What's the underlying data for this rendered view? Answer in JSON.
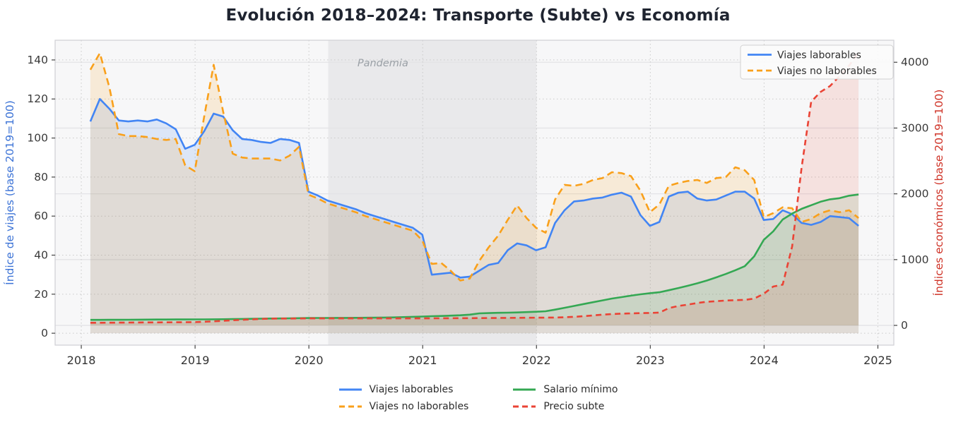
{
  "title": "Evolución 2018–2024: Transporte (Subte) vs Economía",
  "chart_data": {
    "type": "line",
    "title": "Evolución 2018–2024: Transporte (Subte) vs Economía",
    "x_months": [
      "2018-01",
      "2018-02",
      "2018-03",
      "2018-04",
      "2018-05",
      "2018-06",
      "2018-07",
      "2018-08",
      "2018-09",
      "2018-10",
      "2018-11",
      "2018-12",
      "2019-01",
      "2019-02",
      "2019-03",
      "2019-04",
      "2019-05",
      "2019-06",
      "2019-07",
      "2019-08",
      "2019-09",
      "2019-10",
      "2019-11",
      "2019-12",
      "2020-01",
      "2020-02",
      "2020-03",
      "2020-04",
      "2020-05",
      "2020-06",
      "2020-07",
      "2020-08",
      "2020-09",
      "2020-10",
      "2020-11",
      "2020-12",
      "2021-01",
      "2021-02",
      "2021-03",
      "2021-04",
      "2021-05",
      "2021-06",
      "2021-07",
      "2021-08",
      "2021-09",
      "2021-10",
      "2021-11",
      "2021-12",
      "2022-01",
      "2022-02",
      "2022-03",
      "2022-04",
      "2022-05",
      "2022-06",
      "2022-07",
      "2022-08",
      "2022-09",
      "2022-10",
      "2022-11",
      "2022-12",
      "2023-01",
      "2023-02",
      "2023-03",
      "2023-04",
      "2023-05",
      "2023-06",
      "2023-07",
      "2023-08",
      "2023-09",
      "2023-10",
      "2023-11",
      "2023-12",
      "2024-01",
      "2024-02",
      "2024-03",
      "2024-04",
      "2024-05",
      "2024-06",
      "2024-07",
      "2024-08",
      "2024-09",
      "2024-10"
    ],
    "t_start": 2018.08,
    "x_axis": {
      "range": [
        2017.77,
        2025.14
      ],
      "ticks": [
        2018,
        2019,
        2020,
        2021,
        2022,
        2023,
        2024,
        2025
      ]
    },
    "y_left": {
      "label": "Índice de viajes (base 2019=100)",
      "range": [
        -6.1,
        150.1
      ],
      "ticks": [
        0,
        20,
        40,
        60,
        80,
        100,
        120,
        140
      ],
      "color": "#3c73d6"
    },
    "y_right": {
      "label": "Índices económicos (base 2019=100)",
      "range": [
        -300,
        4335
      ],
      "ticks": [
        0,
        1000,
        2000,
        3000,
        4000
      ],
      "color": "#cf3327"
    },
    "grid": true,
    "legend_box": {
      "position": "top-right",
      "items": [
        "Viajes laborables",
        "Viajes no laborables"
      ]
    },
    "legend_bottom": {
      "columns": [
        [
          "Viajes laborables",
          "Viajes no laborables"
        ],
        [
          "Salario mínimo",
          "Precio subte"
        ]
      ]
    },
    "annotation_band": {
      "label": "Pandemia",
      "from": 2020.17,
      "to": 2022.0,
      "color": "#dfdfe3",
      "label_color": "#9aa0a6",
      "label_x": 2020.65,
      "label_y": 136.7
    },
    "series": [
      {
        "name": "Viajes laborables",
        "axis": "left",
        "color": "#4285f4",
        "dash": "solid",
        "fill_opacity": 0.15,
        "values": [
          108.5,
          120,
          115,
          109,
          108.5,
          109,
          108.5,
          109.5,
          107.5,
          104.5,
          94.5,
          96.5,
          103.5,
          112.5,
          111,
          104,
          99.5,
          99,
          98,
          97.5,
          99.5,
          99,
          97.5,
          72.5,
          70.5,
          68,
          66.5,
          65,
          63.5,
          61.5,
          60,
          58.5,
          57,
          55.5,
          54,
          50.5,
          30,
          30.5,
          31,
          28.5,
          29,
          32,
          35,
          36,
          42.5,
          46,
          45,
          42.5,
          44,
          56.5,
          63,
          67.5,
          68,
          69,
          69.5,
          71,
          72,
          70,
          60.5,
          55,
          57,
          70,
          72,
          72.5,
          69,
          68,
          68.5,
          70.5,
          72.5,
          72.5,
          69,
          58,
          58.5,
          63,
          61,
          56.5,
          55.5,
          57,
          60,
          59.5,
          59,
          55
        ]
      },
      {
        "name": "Viajes no laborables",
        "axis": "left",
        "color": "#f9a01b",
        "dash": "dashed",
        "fill_opacity": 0.15,
        "values": [
          135,
          143.5,
          126,
          102,
          101,
          101,
          100.5,
          99.5,
          99,
          99.5,
          86,
          83,
          111,
          137.5,
          113.5,
          92,
          90,
          89.5,
          89.5,
          89.5,
          88.5,
          91,
          95.5,
          71,
          69,
          66.5,
          65,
          63.5,
          62,
          60,
          58.5,
          57,
          55.5,
          54,
          52.5,
          47.5,
          35.5,
          36,
          32,
          27,
          28,
          37,
          44,
          50,
          58,
          65.5,
          59,
          54,
          51.5,
          68.5,
          76,
          75.5,
          76.5,
          78.5,
          79.5,
          82.5,
          82,
          80.5,
          73,
          62,
          66,
          75.5,
          77,
          78,
          78.5,
          77,
          79.5,
          80,
          85,
          83.5,
          78.5,
          59.5,
          61.5,
          64.5,
          64,
          57,
          58.5,
          61.5,
          63,
          62,
          63,
          59
        ]
      },
      {
        "name": "Salario mínimo",
        "axis": "right",
        "color": "#34a853",
        "dash": "solid",
        "fill_opacity": 0.13,
        "values": [
          84,
          84.5,
          85,
          85.5,
          86,
          87,
          88,
          89,
          90,
          90.5,
          91,
          91.5,
          92,
          93,
          94,
          96,
          98,
          100,
          102,
          104,
          106,
          108,
          110,
          112,
          113,
          113,
          114,
          114,
          115,
          116,
          117,
          119,
          122,
          126,
          130,
          135,
          140,
          143,
          148,
          154,
          164,
          183,
          187,
          191,
          194,
          197,
          202,
          208,
          215,
          240,
          268,
          296,
          324,
          352,
          380,
          408,
          430,
          452,
          472,
          490,
          504,
          535,
          568,
          602,
          640,
          682,
          730,
          782,
          838,
          900,
          1050,
          1300,
          1430,
          1610,
          1700,
          1772,
          1826,
          1880,
          1917,
          1934,
          1971,
          1990
        ]
      },
      {
        "name": "Precio subte",
        "axis": "right",
        "color": "#ea4335",
        "dash": "dashed",
        "fill_opacity": 0.12,
        "values": [
          40,
          40,
          41,
          42,
          43,
          44,
          45,
          46,
          47,
          48,
          49,
          50,
          55,
          62,
          70,
          78,
          85,
          92,
          98,
          102,
          104,
          105,
          106,
          107,
          107,
          107,
          107,
          107,
          107,
          107,
          107,
          107,
          107,
          107,
          107,
          107,
          108,
          108,
          109,
          110,
          110,
          111,
          112,
          113,
          114,
          115,
          116,
          117,
          118,
          120,
          124,
          130,
          140,
          152,
          163,
          172,
          179,
          183,
          186,
          189,
          195,
          262,
          295,
          316,
          340,
          359,
          368,
          378,
          383,
          388,
          407,
          480,
          590,
          620,
          1200,
          2400,
          3400,
          3550,
          3640,
          3790,
          3950,
          4150
        ]
      }
    ]
  },
  "style": {
    "plot_bg": "#f7f7f8",
    "grid_dotted": "#c9c9c9",
    "grid_solid": "#e3e3e6",
    "spine": "#cfcfd4",
    "tick_color": "#3a3a3a",
    "legend_bg": "#fbfbfb",
    "legend_border": "#d2d2d2"
  }
}
